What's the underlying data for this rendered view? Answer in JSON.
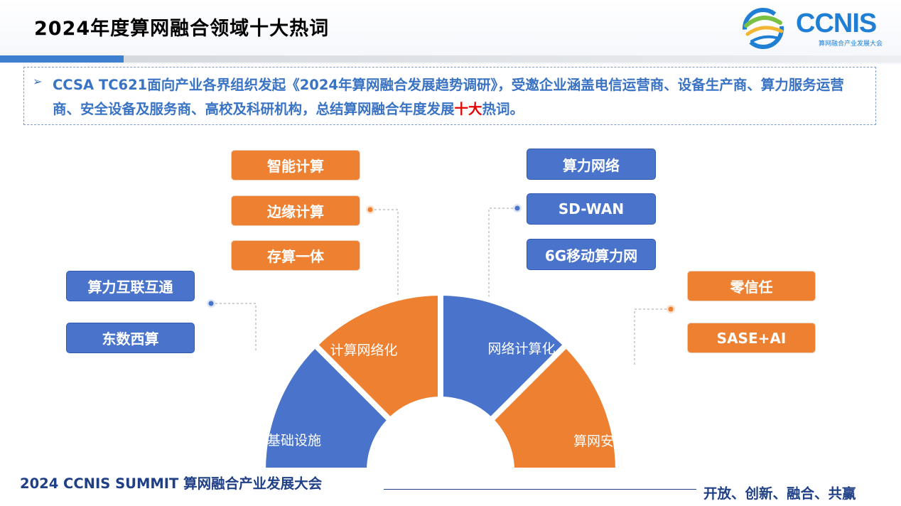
{
  "header": {
    "title": "2024年度算网融合领域十大热词",
    "logo_text": "CCNIS",
    "logo_sub": "算网融合产业发展大会"
  },
  "intro": {
    "prefix": "CCSA TC621面向产业各界组织发起《2024年算网融合发展趋势调研》，受邀企业涵盖电信运营商、设备生产商、算力服务运营商、安全设备及服务商、高校及科研机构，总结算网融合年度发展",
    "highlight": "十大",
    "suffix": "热词。"
  },
  "sectors": [
    {
      "label": "算网基础设施",
      "color": "#4a74cc"
    },
    {
      "label": "计算网络化",
      "color": "#ee8131"
    },
    {
      "label": "网络计算化",
      "color": "#4a74cc"
    },
    {
      "label": "算网安全",
      "color": "#ee8131"
    }
  ],
  "keywords": {
    "infrastructure": [
      "算力互联互通",
      "东数西算"
    ],
    "compute_networking": [
      "智能计算",
      "边缘计算",
      "存算一体"
    ],
    "network_computing": [
      "算力网络",
      "SD-WAN",
      "6G移动算力网"
    ],
    "security": [
      "零信任",
      "SASE+AI"
    ]
  },
  "footer": {
    "left": "2024 CCNIS SUMMIT 算网融合产业发展大会",
    "right": "开放、创新、融合、共赢"
  },
  "colors": {
    "orange": "#ee8131",
    "blue": "#4a74cc",
    "title_blue": "#3a73c4",
    "footer_navy": "#1f3f86",
    "highlight_red": "#e60000"
  }
}
